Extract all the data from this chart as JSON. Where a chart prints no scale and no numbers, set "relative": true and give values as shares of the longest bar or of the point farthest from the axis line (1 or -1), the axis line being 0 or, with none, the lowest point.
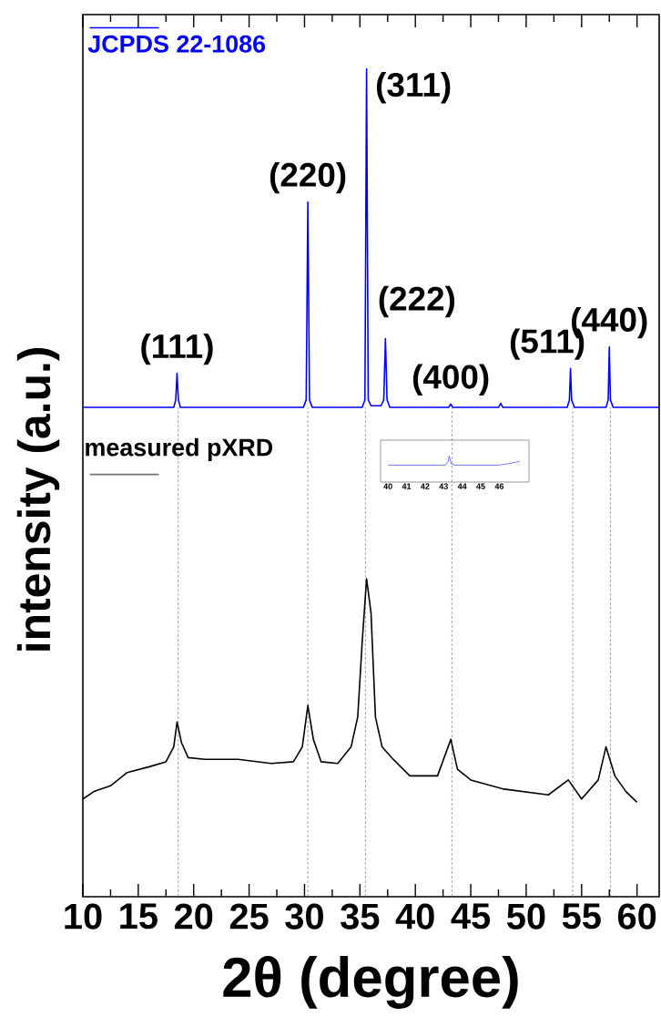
{
  "chart_data": [
    {
      "type": "line",
      "relative": true,
      "xlabel": "2θ (degree)",
      "ylabel": "intensity (a.u.)",
      "xlim": [
        10,
        62
      ],
      "xticks": [
        10,
        15,
        20,
        25,
        30,
        35,
        40,
        45,
        50,
        55,
        60
      ],
      "legend": "top left",
      "series": [
        {
          "name": "JCPDS 22-1086",
          "color": "#0000ff",
          "x": [
            10,
            18.2,
            18.38,
            18.5,
            18.62,
            18.8,
            29.9,
            30.15,
            30.3,
            30.45,
            30.7,
            35.2,
            35.45,
            35.6,
            35.75,
            36.0,
            36.9,
            37.15,
            37.3,
            37.45,
            37.7,
            43.0,
            43.2,
            43.4,
            47.5,
            47.7,
            47.9,
            53.7,
            53.9,
            54.0,
            54.1,
            54.35,
            57.2,
            57.4,
            57.5,
            57.6,
            57.85,
            62
          ],
          "values": [
            0.591,
            0.591,
            0.6,
            0.632,
            0.6,
            0.591,
            0.591,
            0.6,
            0.839,
            0.6,
            0.591,
            0.591,
            0.6,
            1.0,
            0.6,
            0.593,
            0.593,
            0.6,
            0.674,
            0.6,
            0.591,
            0.591,
            0.595,
            0.591,
            0.591,
            0.596,
            0.591,
            0.591,
            0.6,
            0.638,
            0.6,
            0.591,
            0.591,
            0.6,
            0.664,
            0.6,
            0.591,
            0.591
          ]
        },
        {
          "name": "measured pXRD",
          "color": "#000000",
          "x": [
            10,
            11,
            12.5,
            14,
            16,
            17.5,
            18.2,
            18.5,
            18.9,
            19.5,
            21,
            24,
            27,
            29,
            29.8,
            30.3,
            30.8,
            31.5,
            33,
            34.2,
            34.8,
            35.2,
            35.6,
            36.0,
            36.4,
            37,
            38,
            39.5,
            42,
            43.2,
            43.8,
            45,
            48,
            52,
            53.8,
            55,
            56.5,
            57.2,
            58,
            59,
            60
          ],
          "values": [
            0.118,
            0.127,
            0.134,
            0.15,
            0.157,
            0.163,
            0.181,
            0.211,
            0.186,
            0.168,
            0.166,
            0.166,
            0.161,
            0.163,
            0.181,
            0.231,
            0.19,
            0.163,
            0.161,
            0.181,
            0.217,
            0.307,
            0.384,
            0.343,
            0.217,
            0.181,
            0.166,
            0.146,
            0.146,
            0.19,
            0.154,
            0.141,
            0.13,
            0.123,
            0.141,
            0.118,
            0.141,
            0.181,
            0.146,
            0.127,
            0.114
          ]
        }
      ],
      "ref_lines": [
        {
          "axis": "x",
          "value": 18.6
        },
        {
          "axis": "x",
          "value": 30.3
        },
        {
          "axis": "x",
          "value": 35.5
        },
        {
          "axis": "x",
          "value": 43.3
        },
        {
          "axis": "x",
          "value": 54.2
        },
        {
          "axis": "x",
          "value": 57.6
        }
      ],
      "annotations": [
        {
          "text": "(111)",
          "x": 18.5,
          "y": 0.632
        },
        {
          "text": "(220)",
          "x": 30.3,
          "y": 0.839
        },
        {
          "text": "(311)",
          "x": 35.6,
          "y": 1.0
        },
        {
          "text": "(222)",
          "x": 37.3,
          "y": 0.674
        },
        {
          "text": "(400)",
          "x": 43.2,
          "y": 0.595
        },
        {
          "text": "(511)",
          "x": 54.0,
          "y": 0.638
        },
        {
          "text": "(440)",
          "x": 57.5,
          "y": 0.664
        }
      ]
    },
    {
      "type": "line",
      "relative": true,
      "xlim": [
        39.6,
        47.6
      ],
      "xticks": [
        40,
        41,
        42,
        43,
        44,
        45,
        46
      ],
      "series": [
        {
          "color": "#5555ff",
          "x": [
            40.0,
            43.1,
            43.25,
            43.3,
            43.4,
            43.6,
            46.0,
            46.5,
            47.1
          ],
          "values": [
            0.648,
            0.648,
            0.8,
            1.0,
            0.7,
            0.648,
            0.648,
            0.7,
            0.79
          ]
        }
      ]
    }
  ]
}
